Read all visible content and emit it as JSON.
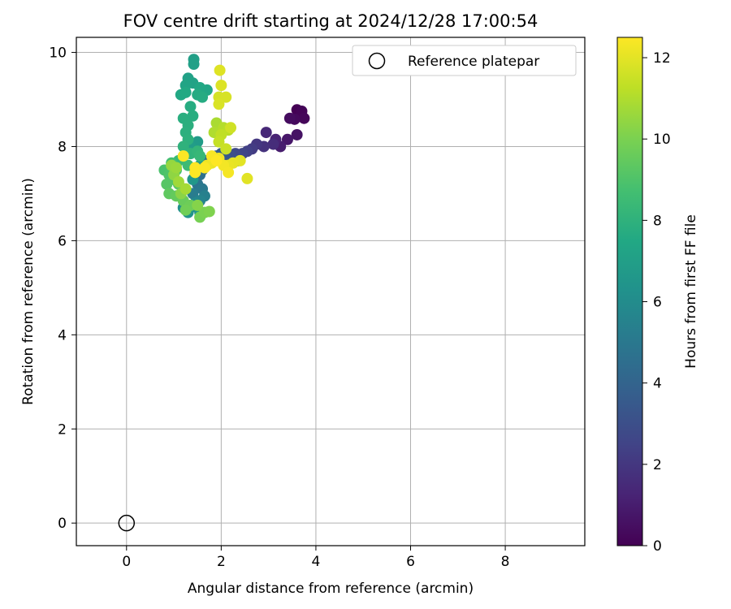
{
  "chart_data": {
    "type": "scatter",
    "title": "FOV centre drift starting at 2024/12/28 17:00:54",
    "xlabel": "Angular distance from reference (arcmin)",
    "ylabel": "Rotation from reference (arcmin)",
    "xlim": [
      -1.06,
      9.68
    ],
    "ylim": [
      -0.48,
      10.32
    ],
    "xticks": [
      "0",
      "2",
      "4",
      "6",
      "8"
    ],
    "yticks": [
      "0",
      "2",
      "4",
      "6",
      "8",
      "10"
    ],
    "grid": true,
    "legend": {
      "position": "top-right",
      "entries": [
        "Reference platepar"
      ]
    },
    "reference_point": {
      "x": 0,
      "y": 0,
      "marker": "open-circle",
      "label": "Reference platepar"
    },
    "colorbar": {
      "label": "Hours from first FF file",
      "range": [
        0,
        12.5
      ],
      "ticks": [
        "0",
        "2",
        "4",
        "6",
        "8",
        "10",
        "12"
      ],
      "colormap": "viridis"
    },
    "series": [
      {
        "points": [
          [
            3.6,
            8.78,
            0.0
          ],
          [
            3.7,
            8.75,
            0.1
          ],
          [
            3.75,
            8.6,
            0.2
          ],
          [
            3.55,
            8.58,
            0.3
          ],
          [
            3.45,
            8.6,
            0.4
          ],
          [
            3.6,
            8.25,
            0.6
          ],
          [
            3.4,
            8.15,
            0.8
          ],
          [
            3.25,
            8.0,
            1.0
          ],
          [
            3.15,
            8.15,
            1.2
          ],
          [
            2.95,
            8.3,
            1.4
          ],
          [
            3.1,
            8.05,
            1.6
          ],
          [
            2.9,
            8.0,
            1.8
          ],
          [
            2.75,
            8.05,
            2.0
          ],
          [
            2.65,
            7.95,
            2.2
          ],
          [
            2.55,
            7.9,
            2.4
          ],
          [
            2.45,
            7.85,
            2.6
          ],
          [
            2.3,
            7.85,
            2.8
          ],
          [
            2.2,
            7.8,
            3.0
          ],
          [
            2.35,
            7.7,
            3.2
          ],
          [
            2.1,
            7.75,
            3.4
          ],
          [
            2.0,
            7.85,
            3.6
          ],
          [
            1.9,
            7.8,
            3.8
          ],
          [
            1.8,
            7.75,
            4.0
          ],
          [
            1.7,
            7.7,
            4.2
          ],
          [
            1.6,
            7.5,
            4.4
          ],
          [
            1.55,
            7.4,
            4.6
          ],
          [
            1.5,
            7.2,
            4.8
          ],
          [
            1.6,
            7.1,
            5.0
          ],
          [
            1.4,
            7.0,
            5.2
          ],
          [
            1.65,
            6.95,
            5.4
          ],
          [
            1.55,
            6.85,
            5.6
          ],
          [
            1.45,
            6.8,
            5.8
          ],
          [
            1.35,
            6.7,
            6.0
          ],
          [
            1.2,
            6.7,
            6.2
          ],
          [
            1.3,
            6.6,
            6.4
          ],
          [
            1.55,
            6.6,
            6.5
          ],
          [
            1.4,
            7.3,
            6.6
          ],
          [
            1.55,
            7.6,
            6.7
          ],
          [
            1.5,
            8.1,
            6.8
          ],
          [
            1.35,
            8.0,
            6.9
          ],
          [
            1.42,
            9.85,
            7.0
          ],
          [
            1.42,
            9.75,
            7.05
          ],
          [
            1.3,
            9.45,
            7.1
          ],
          [
            1.4,
            9.35,
            7.2
          ],
          [
            1.25,
            9.3,
            7.3
          ],
          [
            1.6,
            9.2,
            7.35
          ],
          [
            1.7,
            9.2,
            7.4
          ],
          [
            1.55,
            9.25,
            7.45
          ],
          [
            1.15,
            9.1,
            7.5
          ],
          [
            1.25,
            9.15,
            7.55
          ],
          [
            1.5,
            9.1,
            7.6
          ],
          [
            1.6,
            9.05,
            7.65
          ],
          [
            1.35,
            8.85,
            7.7
          ],
          [
            1.4,
            8.65,
            7.75
          ],
          [
            1.2,
            8.6,
            7.8
          ],
          [
            1.3,
            8.45,
            7.85
          ],
          [
            1.25,
            8.3,
            7.9
          ],
          [
            1.3,
            8.15,
            7.95
          ],
          [
            1.2,
            8.0,
            8.0
          ],
          [
            1.35,
            7.85,
            8.1
          ],
          [
            1.5,
            7.9,
            8.2
          ],
          [
            1.55,
            7.8,
            8.3
          ],
          [
            1.1,
            7.7,
            8.4
          ],
          [
            1.3,
            7.6,
            8.5
          ],
          [
            1.45,
            7.45,
            8.6
          ],
          [
            0.95,
            7.65,
            8.7
          ],
          [
            1.05,
            7.5,
            8.8
          ],
          [
            0.8,
            7.5,
            8.9
          ],
          [
            0.9,
            7.4,
            9.0
          ],
          [
            1.0,
            7.3,
            9.1
          ],
          [
            0.85,
            7.2,
            9.2
          ],
          [
            1.1,
            7.2,
            9.3
          ],
          [
            0.9,
            7.0,
            9.4
          ],
          [
            1.05,
            6.95,
            9.5
          ],
          [
            1.2,
            6.85,
            9.6
          ],
          [
            1.35,
            6.75,
            9.7
          ],
          [
            1.25,
            6.65,
            9.8
          ],
          [
            1.55,
            6.5,
            9.9
          ],
          [
            1.65,
            6.6,
            10.0
          ],
          [
            1.75,
            6.62,
            10.1
          ],
          [
            1.5,
            6.75,
            10.2
          ],
          [
            1.15,
            7.0,
            10.3
          ],
          [
            1.0,
            7.4,
            10.4
          ],
          [
            0.95,
            7.6,
            10.5
          ],
          [
            1.05,
            7.55,
            10.6
          ],
          [
            1.1,
            7.25,
            10.7
          ],
          [
            1.25,
            7.1,
            10.8
          ],
          [
            1.9,
            8.5,
            10.9
          ],
          [
            1.85,
            8.3,
            11.0
          ],
          [
            2.05,
            8.4,
            11.1
          ],
          [
            2.15,
            8.35,
            11.2
          ],
          [
            2.0,
            8.25,
            11.3
          ],
          [
            1.95,
            8.1,
            11.4
          ],
          [
            2.1,
            7.95,
            11.5
          ],
          [
            2.2,
            8.4,
            11.6
          ],
          [
            1.95,
            9.05,
            11.7
          ],
          [
            2.1,
            9.05,
            11.75
          ],
          [
            1.95,
            8.9,
            11.8
          ],
          [
            2.0,
            9.3,
            11.85
          ],
          [
            1.97,
            9.62,
            11.9
          ],
          [
            2.55,
            7.32,
            11.95
          ],
          [
            2.4,
            7.7,
            12.0
          ],
          [
            2.25,
            7.65,
            12.05
          ],
          [
            2.15,
            7.6,
            12.1
          ],
          [
            1.8,
            7.65,
            12.15
          ],
          [
            1.7,
            7.6,
            12.2
          ],
          [
            1.95,
            7.75,
            12.25
          ],
          [
            2.05,
            7.6,
            12.3
          ],
          [
            2.15,
            7.45,
            12.35
          ],
          [
            1.8,
            7.8,
            12.4
          ],
          [
            1.2,
            7.8,
            12.45
          ],
          [
            1.45,
            7.45,
            12.5
          ],
          [
            1.45,
            7.55,
            12.5
          ],
          [
            1.65,
            7.55,
            12.45
          ],
          [
            1.9,
            7.7,
            12.5
          ]
        ]
      }
    ]
  }
}
